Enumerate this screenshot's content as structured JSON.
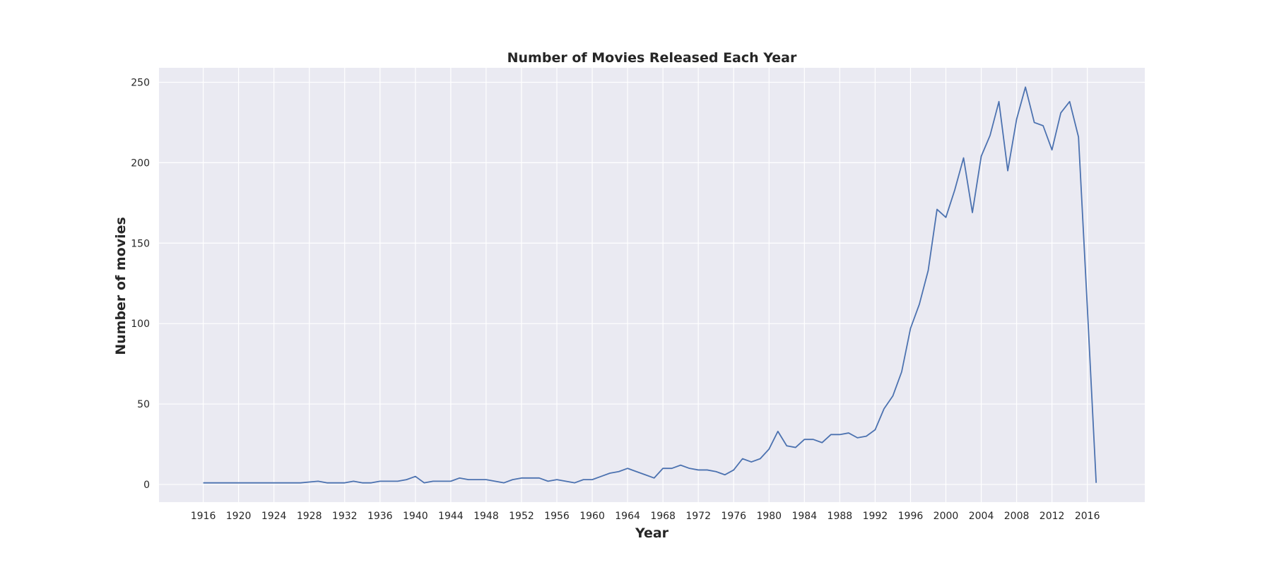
{
  "chart_data": {
    "type": "line",
    "title": "Number of Movies Released Each Year",
    "xlabel": "Year",
    "ylabel": "Number of movies",
    "x_ticks": [
      1916,
      1920,
      1924,
      1928,
      1932,
      1936,
      1940,
      1944,
      1948,
      1952,
      1956,
      1960,
      1964,
      1968,
      1972,
      1976,
      1980,
      1984,
      1988,
      1992,
      1996,
      2000,
      2004,
      2008,
      2012,
      2016
    ],
    "y_ticks": [
      0,
      50,
      100,
      150,
      200,
      250
    ],
    "xlim": [
      1911,
      2022.5
    ],
    "ylim": [
      -11,
      259
    ],
    "grid": true,
    "background_color": "#eaeaf2",
    "line_color": "#4c72b0",
    "series": [
      {
        "x": [
          1916,
          1917,
          1918,
          1919,
          1920,
          1921,
          1922,
          1923,
          1924,
          1925,
          1926,
          1927,
          1928,
          1929,
          1930,
          1931,
          1932,
          1933,
          1934,
          1935,
          1936,
          1937,
          1938,
          1939,
          1940,
          1941,
          1942,
          1943,
          1944,
          1945,
          1946,
          1947,
          1948,
          1949,
          1950,
          1951,
          1952,
          1953,
          1954,
          1955,
          1956,
          1957,
          1958,
          1959,
          1960,
          1961,
          1962,
          1963,
          1964,
          1965,
          1966,
          1967,
          1968,
          1969,
          1970,
          1971,
          1972,
          1973,
          1974,
          1975,
          1976,
          1977,
          1978,
          1979,
          1980,
          1981,
          1982,
          1983,
          1984,
          1985,
          1986,
          1987,
          1988,
          1989,
          1990,
          1991,
          1992,
          1993,
          1994,
          1995,
          1996,
          1997,
          1998,
          1999,
          2000,
          2001,
          2002,
          2003,
          2004,
          2005,
          2006,
          2007,
          2008,
          2009,
          2010,
          2011,
          2012,
          2013,
          2014,
          2015,
          2016,
          2017
        ],
        "y": [
          1,
          1,
          1,
          1,
          1,
          1,
          1,
          1,
          1,
          1,
          1,
          1,
          1.5,
          2,
          1,
          1,
          1,
          2,
          1,
          1,
          2,
          2,
          2,
          3,
          5,
          1,
          2,
          2,
          2,
          4,
          3,
          3,
          3,
          2,
          1,
          3,
          4,
          4,
          4,
          2,
          3,
          2,
          1,
          3,
          3,
          5,
          7,
          8,
          10,
          8,
          6,
          4,
          10,
          10,
          12,
          10,
          9,
          9,
          8,
          6,
          9,
          16,
          14,
          16,
          22,
          33,
          24,
          23,
          28,
          28,
          26,
          31,
          31,
          32,
          29,
          30,
          34,
          47,
          55,
          70,
          97,
          112,
          133,
          171,
          166,
          183,
          203,
          169,
          204,
          217,
          238,
          195,
          227,
          247,
          225,
          223,
          208,
          231,
          238,
          216,
          110,
          1
        ]
      }
    ]
  }
}
